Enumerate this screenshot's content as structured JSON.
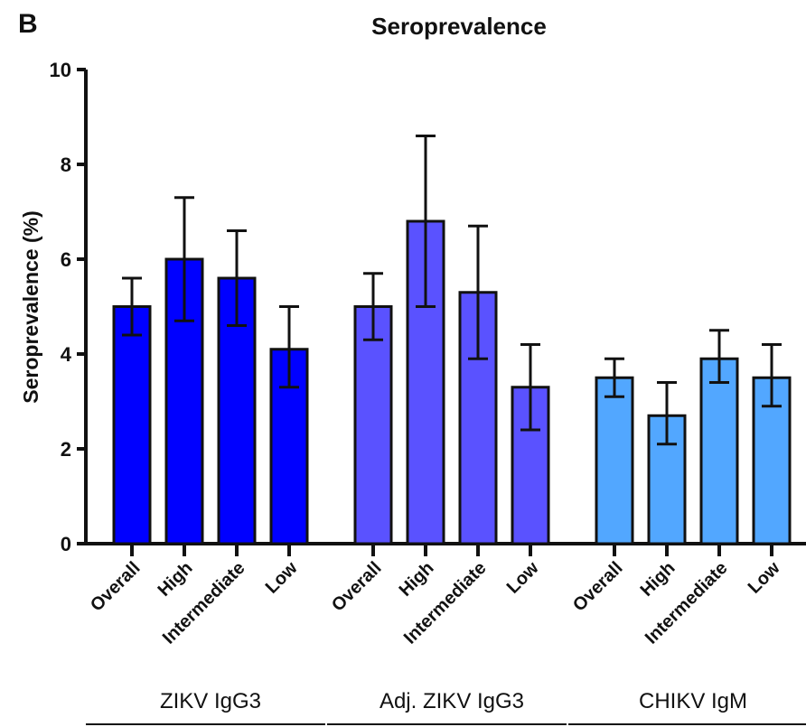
{
  "panel_label": "B",
  "chart_data": {
    "type": "bar",
    "title": "Seroprevalence",
    "xlabel": "",
    "ylabel": "Seroprevalence (%)",
    "ylim": [
      0,
      10
    ],
    "yticks": [
      0,
      2,
      4,
      6,
      8,
      10
    ],
    "grid": false,
    "legend": "none",
    "groups": [
      {
        "label": "ZIKV IgG3",
        "color": "#0000ff",
        "categories": [
          "Overall",
          "High",
          "Intermediate",
          "Low"
        ],
        "values": [
          5.0,
          6.0,
          5.6,
          4.1
        ],
        "error_low": [
          4.4,
          4.7,
          4.6,
          3.3
        ],
        "error_high": [
          5.6,
          7.3,
          6.6,
          5.0
        ]
      },
      {
        "label": "Adj. ZIKV IgG3",
        "color": "#5a52ff",
        "categories": [
          "Overall",
          "High",
          "Intermediate",
          "Low"
        ],
        "values": [
          5.0,
          6.8,
          5.3,
          3.3
        ],
        "error_low": [
          4.3,
          5.0,
          3.9,
          2.4
        ],
        "error_high": [
          5.7,
          8.6,
          6.7,
          4.2
        ]
      },
      {
        "label": "CHIKV IgM",
        "color": "#52a7ff",
        "categories": [
          "Overall",
          "High",
          "Intermediate",
          "Low"
        ],
        "values": [
          3.5,
          2.7,
          3.9,
          3.5
        ],
        "error_low": [
          3.1,
          2.1,
          3.4,
          2.9
        ],
        "error_high": [
          3.9,
          3.4,
          4.5,
          4.2
        ]
      }
    ]
  }
}
